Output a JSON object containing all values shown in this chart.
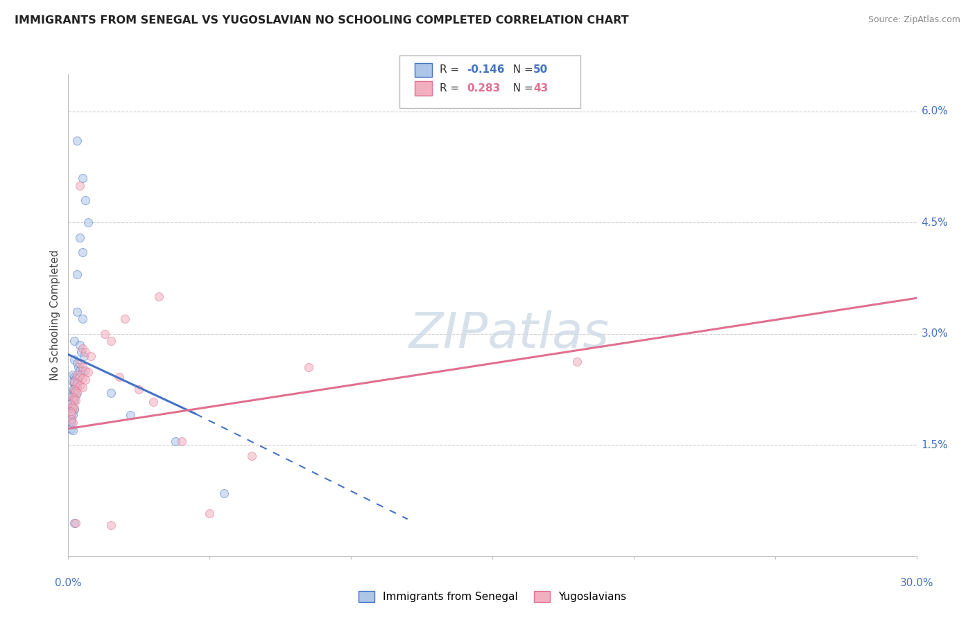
{
  "title": "IMMIGRANTS FROM SENEGAL VS YUGOSLAVIAN NO SCHOOLING COMPLETED CORRELATION CHART",
  "source": "Source: ZipAtlas.com",
  "ylabel": "No Schooling Completed",
  "legend_label1": "Immigrants from Senegal",
  "legend_label2": "Yugoslavians",
  "blue_color": "#adc6e8",
  "pink_color": "#f2afc0",
  "blue_line_color": "#4472c4",
  "pink_line_color": "#e07090",
  "blue_scatter": [
    [
      0.3,
      5.6
    ],
    [
      0.5,
      5.1
    ],
    [
      0.6,
      4.8
    ],
    [
      0.7,
      4.5
    ],
    [
      0.4,
      4.3
    ],
    [
      0.5,
      4.1
    ],
    [
      0.3,
      3.8
    ],
    [
      0.3,
      3.3
    ],
    [
      0.5,
      3.2
    ],
    [
      0.2,
      2.9
    ],
    [
      0.4,
      2.85
    ],
    [
      0.45,
      2.75
    ],
    [
      0.55,
      2.7
    ],
    [
      0.2,
      2.65
    ],
    [
      0.3,
      2.6
    ],
    [
      0.35,
      2.55
    ],
    [
      0.4,
      2.5
    ],
    [
      0.5,
      2.5
    ],
    [
      0.15,
      2.45
    ],
    [
      0.2,
      2.42
    ],
    [
      0.25,
      2.4
    ],
    [
      0.3,
      2.38
    ],
    [
      0.15,
      2.35
    ],
    [
      0.2,
      2.33
    ],
    [
      0.25,
      2.3
    ],
    [
      0.3,
      2.28
    ],
    [
      0.15,
      2.25
    ],
    [
      0.18,
      2.22
    ],
    [
      0.22,
      2.2
    ],
    [
      0.28,
      2.18
    ],
    [
      0.1,
      2.15
    ],
    [
      0.15,
      2.12
    ],
    [
      0.2,
      2.1
    ],
    [
      0.1,
      2.05
    ],
    [
      0.12,
      2.02
    ],
    [
      0.15,
      2.0
    ],
    [
      0.2,
      1.98
    ],
    [
      0.1,
      1.95
    ],
    [
      0.12,
      1.92
    ],
    [
      0.15,
      1.9
    ],
    [
      0.08,
      1.85
    ],
    [
      0.1,
      1.82
    ],
    [
      0.12,
      1.8
    ],
    [
      0.1,
      1.72
    ],
    [
      0.15,
      1.7
    ],
    [
      1.5,
      2.2
    ],
    [
      2.2,
      1.9
    ],
    [
      3.8,
      1.55
    ],
    [
      5.5,
      0.85
    ],
    [
      0.2,
      0.45
    ]
  ],
  "pink_scatter": [
    [
      0.4,
      5.0
    ],
    [
      3.2,
      3.5
    ],
    [
      2.0,
      3.2
    ],
    [
      1.3,
      3.0
    ],
    [
      1.5,
      2.9
    ],
    [
      0.5,
      2.8
    ],
    [
      0.6,
      2.75
    ],
    [
      0.8,
      2.7
    ],
    [
      0.4,
      2.6
    ],
    [
      0.5,
      2.55
    ],
    [
      0.6,
      2.5
    ],
    [
      0.7,
      2.48
    ],
    [
      0.3,
      2.45
    ],
    [
      0.4,
      2.42
    ],
    [
      0.5,
      2.4
    ],
    [
      0.6,
      2.38
    ],
    [
      0.2,
      2.35
    ],
    [
      0.3,
      2.32
    ],
    [
      0.4,
      2.3
    ],
    [
      0.5,
      2.28
    ],
    [
      0.2,
      2.25
    ],
    [
      0.25,
      2.22
    ],
    [
      0.3,
      2.2
    ],
    [
      0.15,
      2.15
    ],
    [
      0.2,
      2.12
    ],
    [
      0.25,
      2.1
    ],
    [
      0.1,
      2.05
    ],
    [
      0.15,
      2.02
    ],
    [
      0.2,
      2.0
    ],
    [
      0.1,
      1.95
    ],
    [
      0.12,
      1.92
    ],
    [
      0.12,
      1.85
    ],
    [
      0.15,
      1.8
    ],
    [
      1.8,
      2.42
    ],
    [
      2.5,
      2.25
    ],
    [
      3.0,
      2.08
    ],
    [
      5.0,
      0.58
    ],
    [
      6.5,
      1.35
    ],
    [
      18.0,
      2.62
    ],
    [
      0.25,
      0.45
    ],
    [
      1.5,
      0.42
    ],
    [
      8.5,
      2.55
    ],
    [
      4.0,
      1.55
    ]
  ],
  "blue_trend_solid": {
    "x_start": 0.0,
    "y_start": 2.72,
    "x_end": 4.5,
    "y_end": 1.92
  },
  "blue_trend_dash": {
    "x_start": 4.5,
    "y_start": 1.92,
    "x_end": 12.0,
    "y_end": 0.5
  },
  "pink_trend": {
    "x_start": 0.0,
    "y_start": 1.72,
    "x_end": 30.0,
    "y_end": 3.48
  },
  "xmin": 0.0,
  "xmax": 30.0,
  "ymin": 0.0,
  "ymax": 6.5,
  "right_y_ticks": [
    0.0,
    1.5,
    3.0,
    4.5,
    6.0
  ],
  "right_y_labels": [
    "",
    "1.5%",
    "3.0%",
    "4.5%",
    "6.0%"
  ],
  "background_color": "#ffffff",
  "grid_color": "#cccccc",
  "dot_size": 75,
  "dot_alpha": 0.55,
  "watermark_text": "ZIPatlas",
  "watermark_color": "#d0dce8",
  "r1_val": "-0.146",
  "n1_val": "50",
  "r2_val": "0.283",
  "n2_val": "43"
}
